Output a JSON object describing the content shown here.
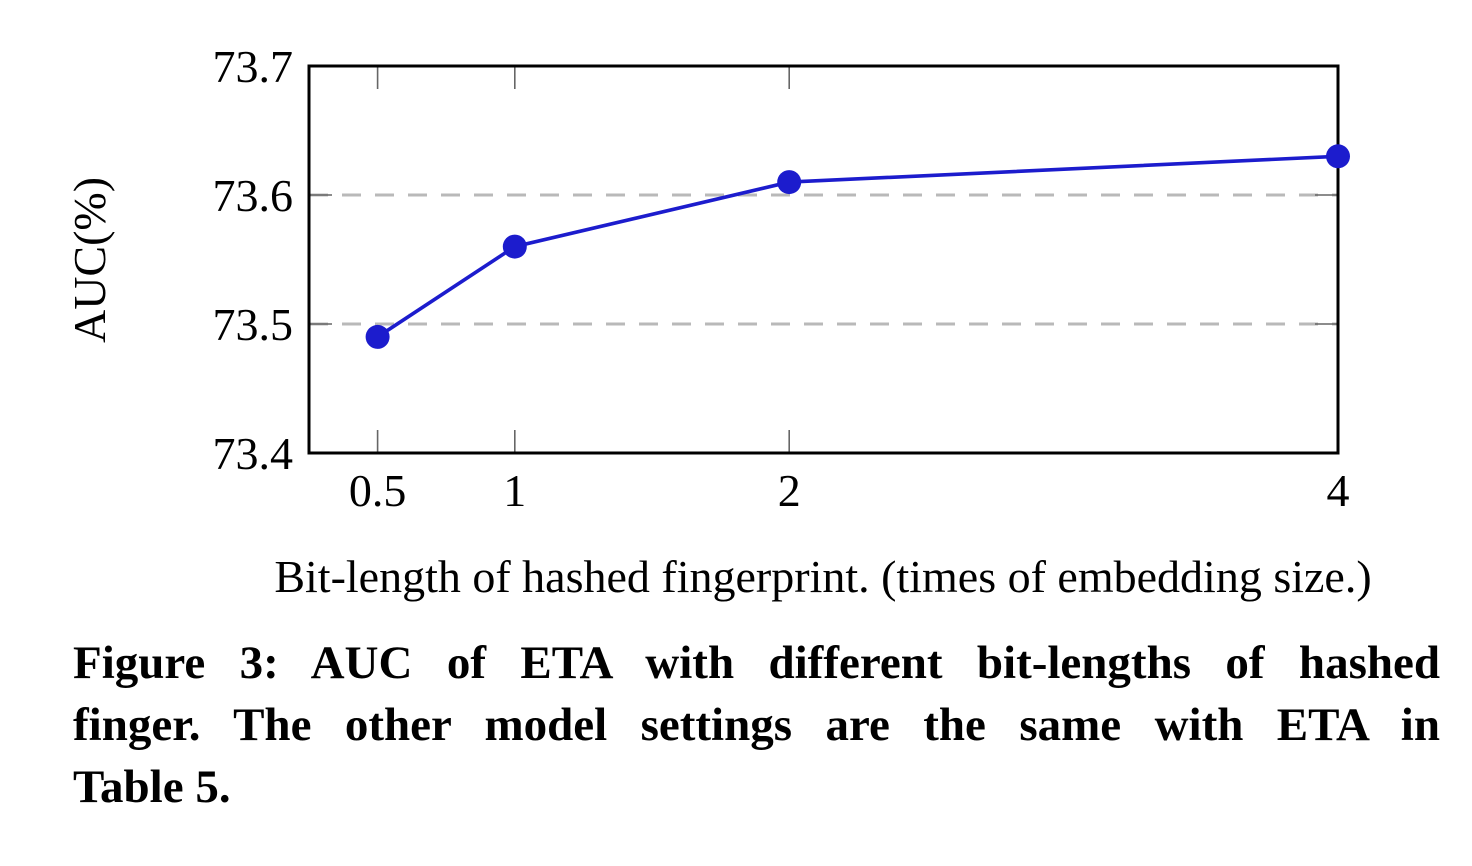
{
  "page": {
    "background": "#ffffff"
  },
  "figure_caption": {
    "lines": [
      "Figure 3: AUC of ETA with different bit-lengths of hashed",
      "finger. The other model settings are the same with ETA in",
      "Table 5."
    ],
    "full_text": "Figure 3: AUC of ETA with different bit-lengths of hashed finger. The other model settings are the same with ETA in Table 5."
  },
  "chart_data": {
    "type": "line",
    "title": "",
    "xlabel": "Bit-length of hashed fingerprint. (times of embedding size.)",
    "ylabel": "AUC(%)",
    "x": [
      0.5,
      1,
      2,
      4
    ],
    "x_tick_labels": [
      "0.5",
      "1",
      "2",
      "4"
    ],
    "series": [
      {
        "name": "AUC of ETA",
        "values": [
          73.49,
          73.56,
          73.61,
          73.63
        ]
      }
    ],
    "y_ticks": [
      73.4,
      73.5,
      73.6,
      73.7
    ],
    "y_tick_labels": [
      "73.4",
      "73.5",
      "73.6",
      "73.7"
    ],
    "y_gridlines": [
      73.5,
      73.6
    ],
    "xlim": [
      0.25,
      4.0
    ],
    "ylim": [
      73.4,
      73.7
    ],
    "x_scale": "linear",
    "grid": "horizontal-dashed",
    "legend_position": "none",
    "colors": {
      "line": "#1c1ccd",
      "marker": "#1c1ccd",
      "grid": "#b9b9b9",
      "axis": "#000000",
      "tick": "#666666"
    }
  }
}
